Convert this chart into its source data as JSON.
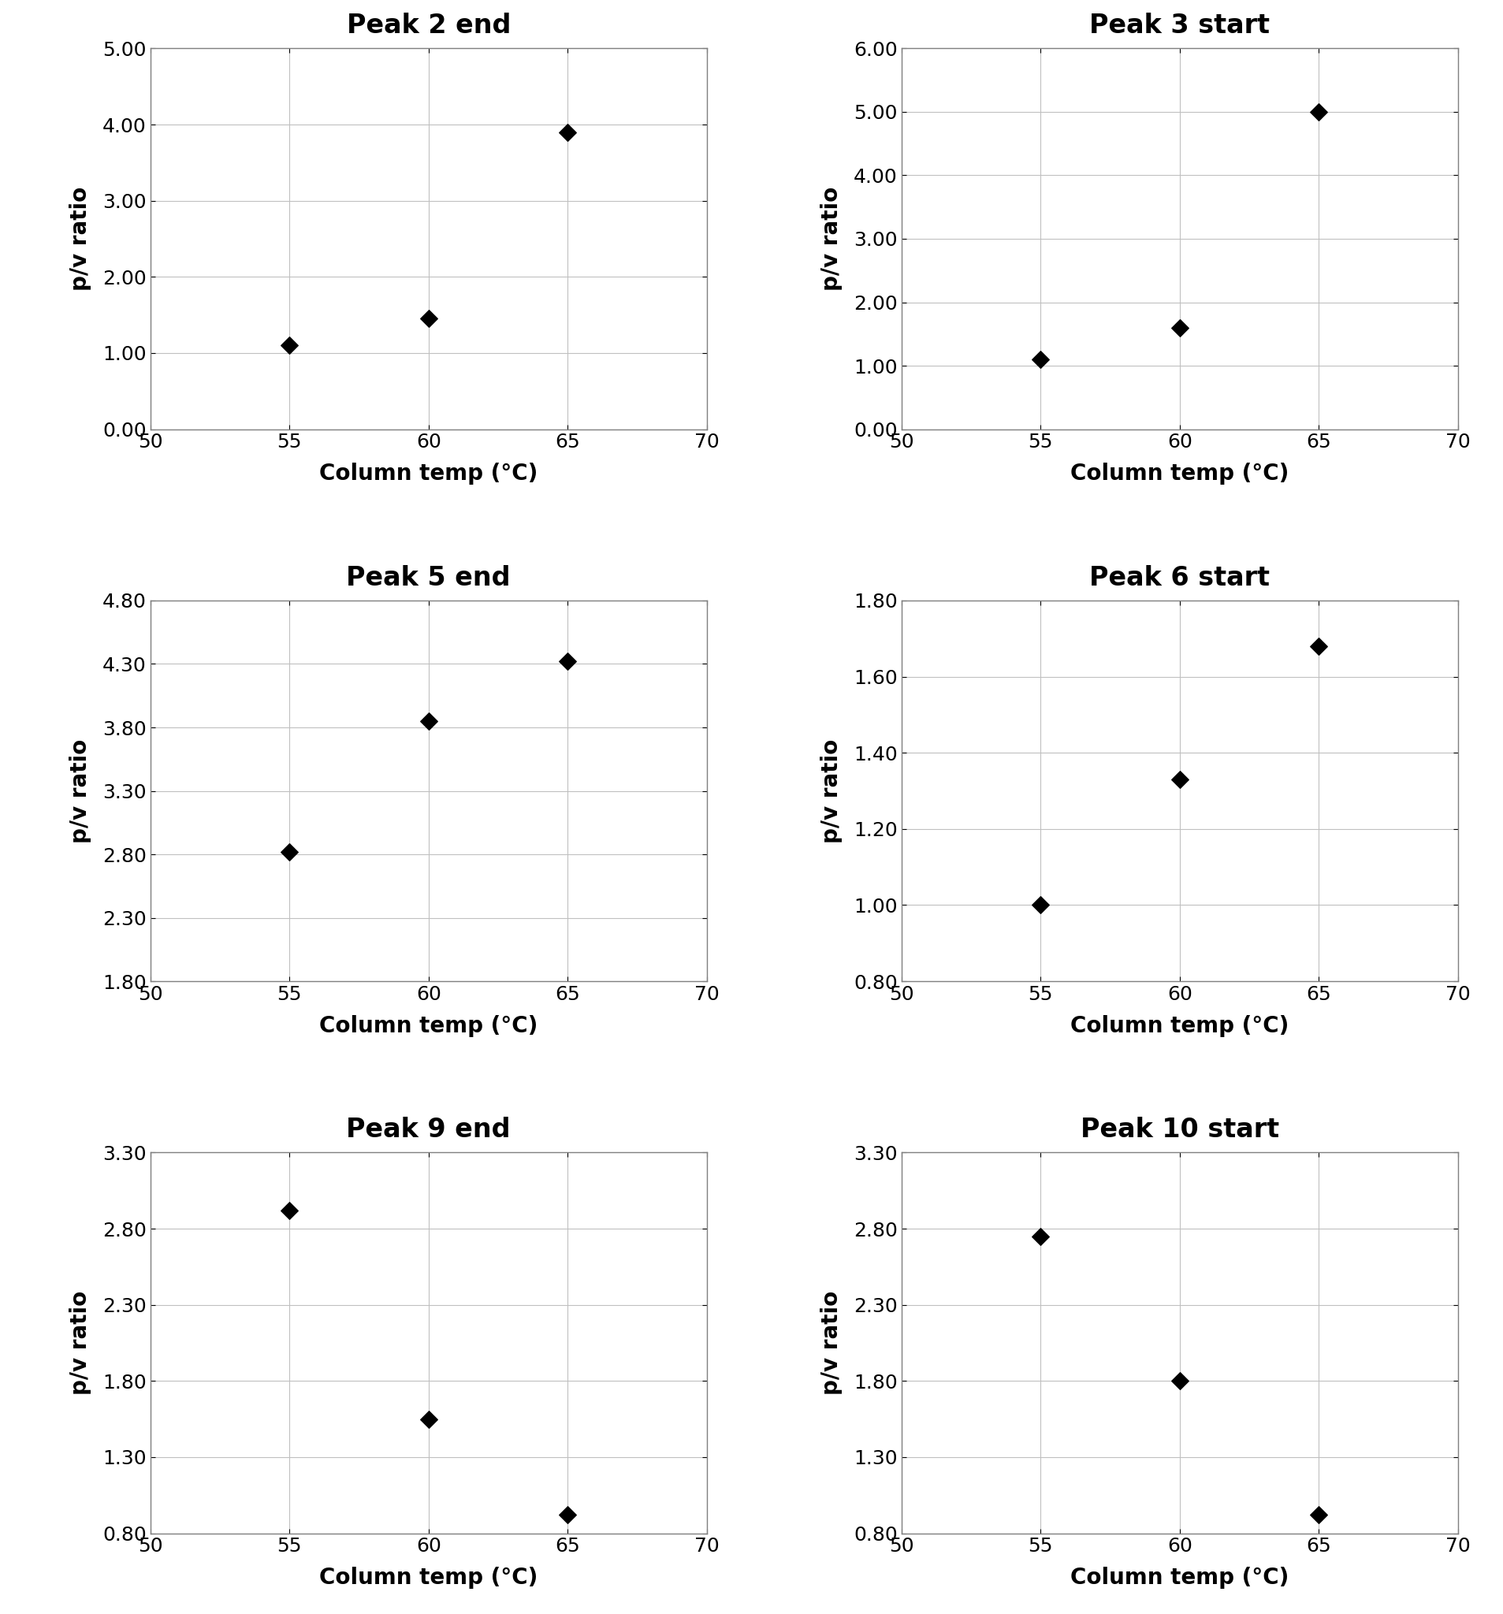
{
  "subplots": [
    {
      "title": "Peak 2 end",
      "x": [
        55,
        60,
        65
      ],
      "y": [
        1.1,
        1.45,
        3.9
      ],
      "ylim": [
        0.0,
        5.0
      ],
      "yticks": [
        0.0,
        1.0,
        2.0,
        3.0,
        4.0,
        5.0
      ],
      "ytick_labels": [
        "0.00",
        "1.00",
        "2.00",
        "3.00",
        "4.00",
        "5.00"
      ]
    },
    {
      "title": "Peak 3 start",
      "x": [
        55,
        60,
        65
      ],
      "y": [
        1.1,
        1.6,
        5.0
      ],
      "ylim": [
        0.0,
        6.0
      ],
      "yticks": [
        0.0,
        1.0,
        2.0,
        3.0,
        4.0,
        5.0,
        6.0
      ],
      "ytick_labels": [
        "0.00",
        "1.00",
        "2.00",
        "3.00",
        "4.00",
        "5.00",
        "6.00"
      ]
    },
    {
      "title": "Peak 5 end",
      "x": [
        55,
        60,
        65
      ],
      "y": [
        2.82,
        3.85,
        4.32
      ],
      "ylim": [
        1.8,
        4.8
      ],
      "yticks": [
        1.8,
        2.3,
        2.8,
        3.3,
        3.8,
        4.3,
        4.8
      ],
      "ytick_labels": [
        "1.80",
        "2.30",
        "2.80",
        "3.30",
        "3.80",
        "4.30",
        "4.80"
      ]
    },
    {
      "title": "Peak 6 start",
      "x": [
        55,
        60,
        65
      ],
      "y": [
        1.0,
        1.33,
        1.68
      ],
      "ylim": [
        0.8,
        1.8
      ],
      "yticks": [
        0.8,
        1.0,
        1.2,
        1.4,
        1.6,
        1.8
      ],
      "ytick_labels": [
        "0.80",
        "1.00",
        "1.20",
        "1.40",
        "1.60",
        "1.80"
      ]
    },
    {
      "title": "Peak 9 end",
      "x": [
        55,
        60,
        65
      ],
      "y": [
        2.92,
        1.55,
        0.92
      ],
      "ylim": [
        0.8,
        3.3
      ],
      "yticks": [
        0.8,
        1.3,
        1.8,
        2.3,
        2.8,
        3.3
      ],
      "ytick_labels": [
        "0.80",
        "1.30",
        "1.80",
        "2.30",
        "2.80",
        "3.30"
      ]
    },
    {
      "title": "Peak 10 start",
      "x": [
        55,
        60,
        65
      ],
      "y": [
        2.75,
        1.8,
        0.92
      ],
      "ylim": [
        0.8,
        3.3
      ],
      "yticks": [
        0.8,
        1.3,
        1.8,
        2.3,
        2.8,
        3.3
      ],
      "ytick_labels": [
        "0.80",
        "1.30",
        "1.80",
        "2.30",
        "2.80",
        "3.30"
      ]
    }
  ],
  "xlim": [
    50,
    70
  ],
  "xticks": [
    50,
    55,
    60,
    65,
    70
  ],
  "xlabel": "Column temp (°C)",
  "ylabel": "p/v ratio",
  "marker": "D",
  "marker_size": 120,
  "marker_color": "black",
  "grid_color": "#c0c0c0",
  "title_fontsize": 24,
  "label_fontsize": 20,
  "tick_fontsize": 18,
  "title_fontweight": "bold",
  "xlabel_fontweight": "bold",
  "ylabel_fontweight": "bold",
  "spine_color": "#808080",
  "spine_linewidth": 1.0
}
